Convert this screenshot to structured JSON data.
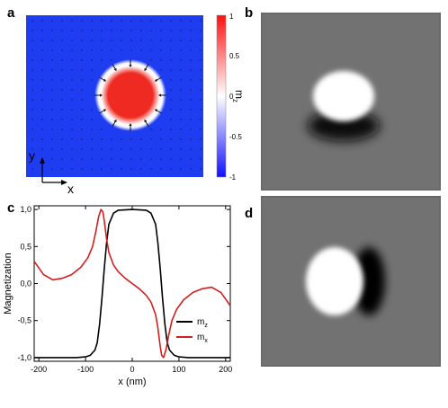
{
  "panels": {
    "a": "a",
    "b": "b",
    "c": "c",
    "d": "d"
  },
  "panel_a": {
    "colorbar_ticks": [
      "1",
      "0.5",
      "0",
      "-0.5",
      "-1"
    ],
    "colorbar_label_base": "m",
    "colorbar_label_sub": "z",
    "axis_x": "x",
    "axis_y": "y",
    "colors": {
      "background": "#1e3cf0",
      "skyrmion": "#ee2a22",
      "rim": "#ffffff"
    }
  },
  "chart_data": {
    "type": "line",
    "xlabel": "x (nm)",
    "ylabel": "Magnetization",
    "xlim": [
      -210,
      210
    ],
    "ylim": [
      -1.05,
      1.05
    ],
    "xticks": [
      -200,
      -100,
      0,
      100,
      200
    ],
    "yticks": [
      -1.0,
      -0.5,
      0.0,
      0.5,
      1.0
    ],
    "xtick_labels": [
      "-200",
      "-100",
      "0",
      "100",
      "200"
    ],
    "ytick_labels": [
      "-1,0",
      "-0,5",
      "0,0",
      "0,5",
      "1,0"
    ],
    "legend_position": "bottom-right",
    "series": [
      {
        "name_base": "m",
        "name_sub": "z",
        "color": "#000000",
        "x": [
          -210,
          -120,
          -100,
          -90,
          -80,
          -75,
          -70,
          -65,
          -60,
          -55,
          -50,
          -40,
          -30,
          0,
          30,
          40,
          50,
          55,
          60,
          65,
          70,
          75,
          80,
          90,
          100,
          120,
          210
        ],
        "y": [
          -1.0,
          -1.0,
          -0.99,
          -0.97,
          -0.9,
          -0.8,
          -0.55,
          -0.2,
          0.2,
          0.55,
          0.8,
          0.95,
          0.99,
          1.0,
          0.99,
          0.95,
          0.8,
          0.55,
          0.2,
          -0.2,
          -0.55,
          -0.8,
          -0.9,
          -0.97,
          -0.99,
          -1.0,
          -1.0
        ]
      },
      {
        "name_base": "m",
        "name_sub": "x",
        "color": "#d21e1e",
        "x": [
          -210,
          -190,
          -170,
          -150,
          -130,
          -110,
          -95,
          -85,
          -78,
          -72,
          -67,
          -63,
          -60,
          -55,
          -50,
          -40,
          -30,
          -15,
          0,
          15,
          30,
          40,
          50,
          55,
          60,
          63,
          67,
          72,
          78,
          85,
          95,
          110,
          130,
          150,
          170,
          190,
          210
        ],
        "y": [
          0.3,
          0.12,
          0.05,
          0.07,
          0.12,
          0.22,
          0.35,
          0.5,
          0.7,
          0.9,
          1.0,
          0.97,
          0.85,
          0.6,
          0.42,
          0.25,
          0.16,
          0.07,
          0.0,
          -0.07,
          -0.16,
          -0.25,
          -0.42,
          -0.6,
          -0.85,
          -0.97,
          -1.0,
          -0.9,
          -0.7,
          -0.5,
          -0.35,
          -0.22,
          -0.12,
          -0.07,
          -0.05,
          -0.12,
          -0.3
        ]
      }
    ]
  }
}
